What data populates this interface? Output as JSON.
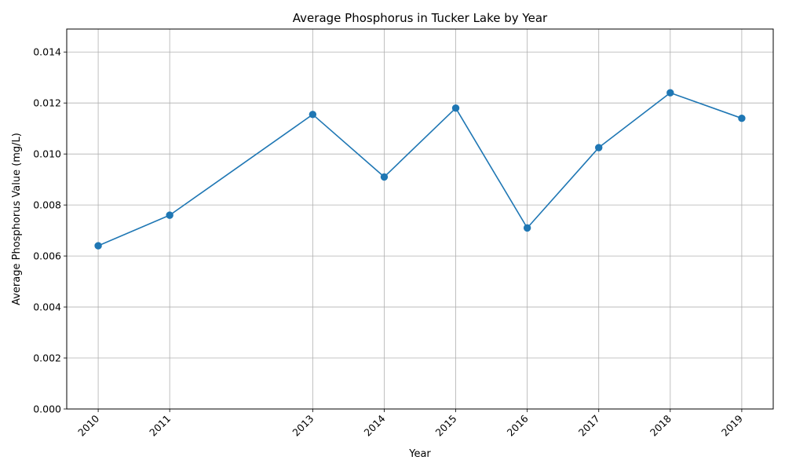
{
  "chart_data": {
    "type": "line",
    "title": "Average Phosphorus in Tucker Lake by Year",
    "xlabel": "Year",
    "ylabel": "Average Phosphorus Value (mg/L)",
    "x": [
      2010,
      2011,
      2013,
      2014,
      2015,
      2016,
      2017,
      2018,
      2019
    ],
    "series": [
      {
        "values": [
          0.0064,
          0.0076,
          0.01155,
          0.0091,
          0.0118,
          0.0071,
          0.01025,
          0.0124,
          0.0114
        ],
        "color": "#1f77b4",
        "marker": "circle"
      }
    ],
    "x_tick_labels": [
      "2010",
      "2011",
      "2013",
      "2014",
      "2015",
      "2016",
      "2017",
      "2018",
      "2019"
    ],
    "y_ticks": [
      0,
      0.002,
      0.004,
      0.006,
      0.008,
      0.01,
      0.012,
      0.014
    ],
    "y_tick_labels": [
      "0.000",
      "0.002",
      "0.004",
      "0.006",
      "0.008",
      "0.010",
      "0.012",
      "0.014"
    ],
    "xlim": [
      2009.56,
      2019.44
    ],
    "ylim": [
      0,
      0.0149
    ],
    "grid": true,
    "x_tick_rotation": 45,
    "colors": {
      "grid": "#b0b0b0",
      "axes": "#000000"
    }
  }
}
